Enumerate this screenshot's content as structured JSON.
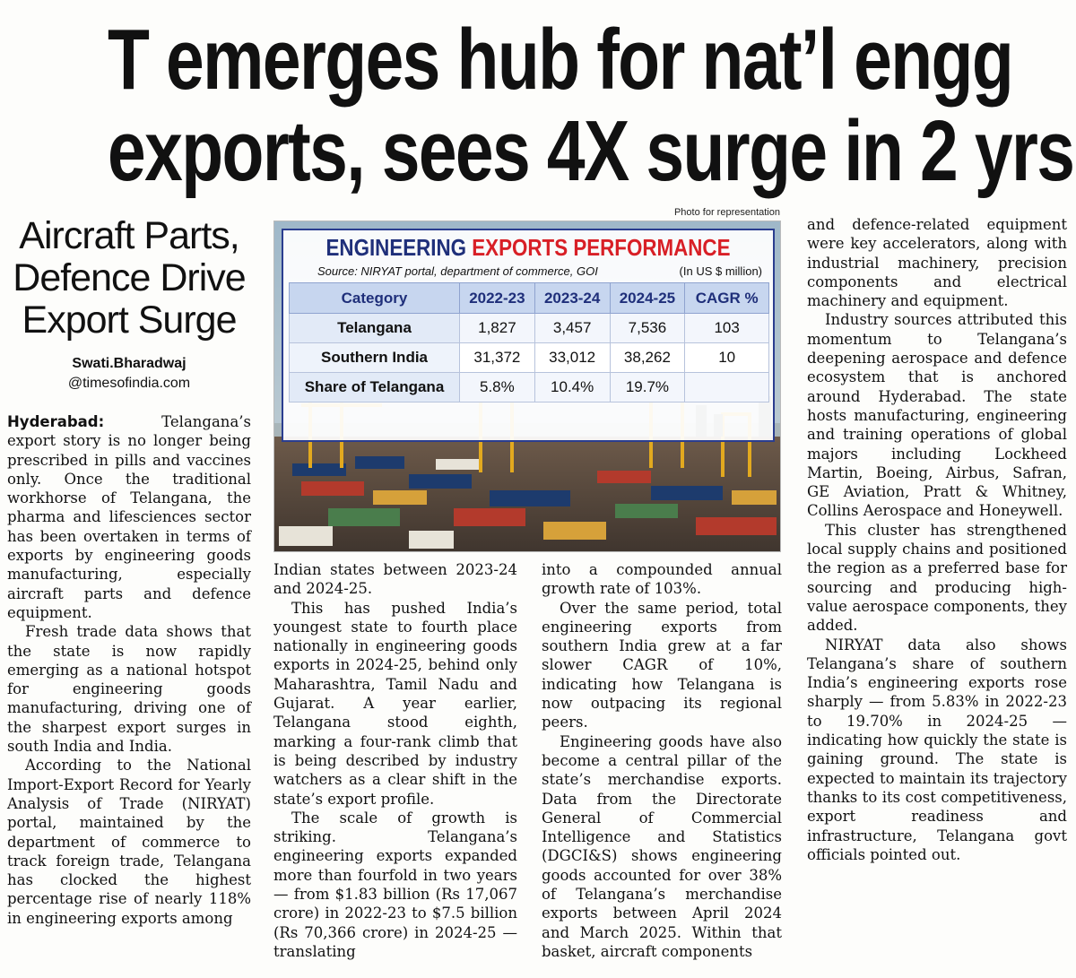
{
  "headline": {
    "line1": "T emerges hub for nat’l engg",
    "line2": "exports, sees 4X surge in 2 yrs"
  },
  "kicker": {
    "line1": "Aircraft Parts,",
    "line2": "Defence Drive",
    "line3": "Export Surge"
  },
  "byline": {
    "name": "Swati.Bharadwaj",
    "handle": "@timesofindia.com"
  },
  "photo_credit": "Photo for representation",
  "graphic": {
    "title_part1": "ENGINEERING ",
    "title_part2": "EXPORTS PERFORMANCE",
    "source": "Source: NIRYAT portal, department of commerce, GOI",
    "unit": "(In US $ million)",
    "accent_color": "#d81f26",
    "title_color": "#1f2f7a",
    "headers": [
      "Category",
      "2022-23",
      "2023-24",
      "2024-25",
      "CAGR %"
    ],
    "rows": [
      {
        "category": "Telangana",
        "y2022": "1,827",
        "y2023": "3,457",
        "y2024": "7,536",
        "cagr": "103"
      },
      {
        "category": "Southern India",
        "y2022": "31,372",
        "y2023": "33,012",
        "y2024": "38,262",
        "cagr": "10"
      },
      {
        "category": "Share of Telangana",
        "y2022": "5.8%",
        "y2023": "10.4%",
        "y2024": "19.7%",
        "cagr": ""
      }
    ]
  },
  "article": {
    "dateline": "Hyderabad:",
    "p1": " Telangana’s export story is no longer being prescribed in pills and vaccines only. Once the traditional workhorse of Telangana, the pharma and lifesciences sector has been overtaken in terms of exports by engineering goods manufacturing, especially aircraft parts and defence equipment.",
    "p2": "Fresh trade data shows that the state is now rapidly emerging as a national hotspot for engineering goods manufacturing, driving one of the sharpest export surges in south India and India.",
    "p3": "According to the National Import-Export Record for Yearly Analysis of Trade (NIRYAT) portal, maintained by the department of commerce to track foreign trade, Telangana has clocked the highest percentage rise of nearly 118% in engineering exports among",
    "p4": "Indian states between 2023-24 and 2024-25.",
    "p5": "This has pushed India’s youngest state to fourth place nationally in engineering goods exports in 2024-25, behind only Maharashtra, Tamil Nadu and Gujarat. A year earlier, Telangana stood eighth, marking a four-rank climb that is being described by industry watchers as a clear shift in the state’s export profile.",
    "p6": "The scale of growth is striking. Telangana’s engineering exports expanded more than fourfold in two years — from $1.83 billion (Rs 17,067 crore) in 2022-23 to $7.5 billion (Rs 70,366 crore) in 2024-25 — translating",
    "p7": "into a compounded annual growth rate of 103%.",
    "p8": "Over the same period, total engineering exports from southern India grew at a far slower CAGR of 10%, indicating how Telangana is now outpacing its regional peers.",
    "p9": "Engineering goods have also become a central pillar of the state’s merchandise exports. Data from the Directorate General of Commercial Intelligence and Statistics (DGCI&S) shows engineering goods accounted for over 38% of Telangana’s merchandise exports between April 2024 and March 2025. Within that basket, aircraft components",
    "p10": "and defence-related equipment were key accelerators, along with industrial machinery, precision components and electrical machinery and equipment.",
    "p11": "Industry sources attributed this momentum to Telangana’s deepening aerospace and defence ecosystem that is anchored around Hyderabad. The state hosts manufacturing, engineering and training operations of global majors including Lockheed Martin, Boeing, Airbus, Safran, GE Aviation, Pratt & Whitney, Collins Aerospace and Honeywell.",
    "p12": "This cluster has strengthened local supply chains and positioned the region as a preferred base for sourcing and producing high-value aerospace components, they added.",
    "p13": "NIRYAT data also shows Telangana’s share of southern India’s engineering exports rose sharply — from 5.83% in 2022-23 to 19.70% in 2024-25 — indicating how quickly the state is gaining ground. The state is expected to maintain its trajectory thanks to its cost competitiveness, export readiness and infrastructure, Telangana govt officials pointed out."
  }
}
